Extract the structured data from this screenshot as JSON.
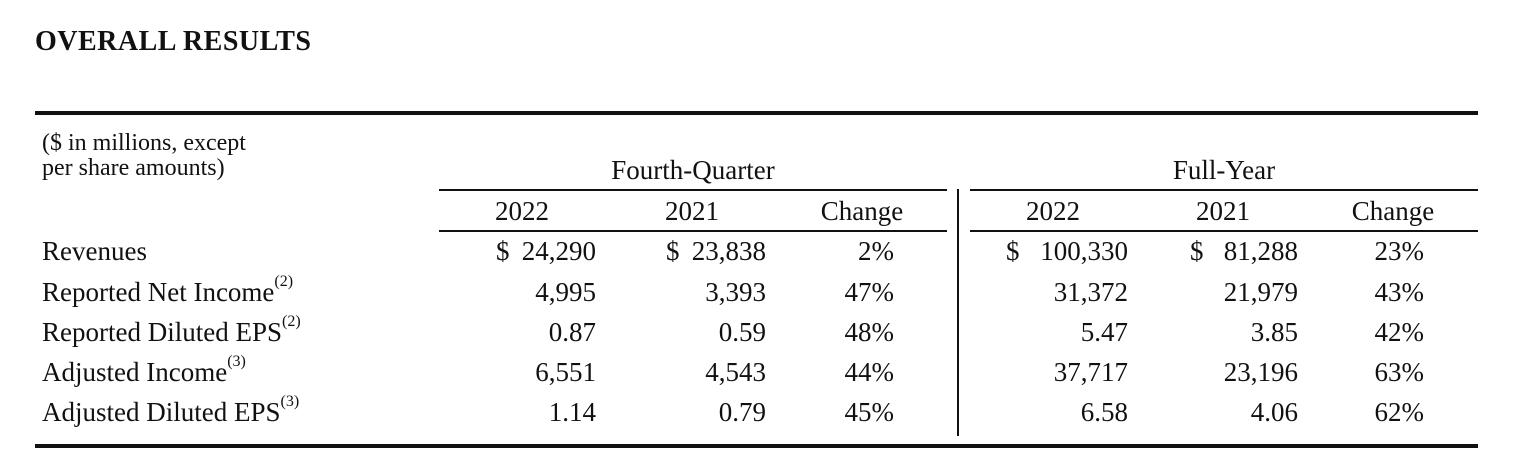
{
  "title": "OVERALL RESULTS",
  "table": {
    "units_note": "($ in millions, except\nper share amounts)",
    "groups": [
      "Fourth-Quarter",
      "Full-Year"
    ],
    "columns": [
      "2022",
      "2021",
      "Change",
      "2022",
      "2021",
      "Change"
    ],
    "rows": [
      {
        "label": "Revenues",
        "sup": "",
        "values": [
          "24,290",
          "23,838",
          "2%",
          "100,330",
          "81,288",
          "23%"
        ],
        "dollar": [
          true,
          true,
          false,
          true,
          true,
          false
        ]
      },
      {
        "label": "Reported Net Income",
        "sup": "(2)",
        "values": [
          "4,995",
          "3,393",
          "47%",
          "31,372",
          "21,979",
          "43%"
        ],
        "dollar": [
          false,
          false,
          false,
          false,
          false,
          false
        ]
      },
      {
        "label": "Reported Diluted EPS",
        "sup": "(2)",
        "values": [
          "0.87",
          "0.59",
          "48%",
          "5.47",
          "3.85",
          "42%"
        ],
        "dollar": [
          false,
          false,
          false,
          false,
          false,
          false
        ]
      },
      {
        "label": "Adjusted Income",
        "sup": "(3)",
        "values": [
          "6,551",
          "4,543",
          "44%",
          "37,717",
          "23,196",
          "63%"
        ],
        "dollar": [
          false,
          false,
          false,
          false,
          false,
          false
        ]
      },
      {
        "label": "Adjusted Diluted EPS",
        "sup": "(3)",
        "values": [
          "1.14",
          "0.79",
          "45%",
          "6.58",
          "4.06",
          "62%"
        ],
        "dollar": [
          false,
          false,
          false,
          false,
          false,
          false
        ]
      }
    ]
  },
  "currency_symbol": "$"
}
